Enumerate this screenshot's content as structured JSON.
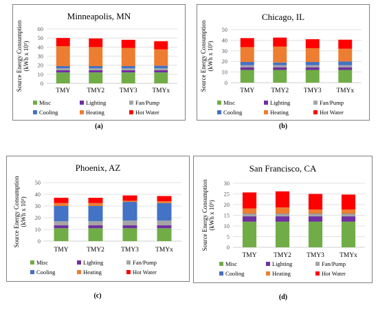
{
  "colors": {
    "misc": "#70ad47",
    "lighting": "#7030a0",
    "fanpump": "#a5a5a5",
    "cooling": "#4472c4",
    "heating": "#ed7d31",
    "hotwater": "#ff0000"
  },
  "legend": {
    "misc": "Misc",
    "lighting": "Lighting",
    "fanpump": "Fan/Pump",
    "cooling": "Cooling",
    "heating": "Heating",
    "hotwater": "Hot Water"
  },
  "chart_data": [
    {
      "type": "bar",
      "stacked": true,
      "caption": "(a)",
      "title": "Minneapolis, MN",
      "ylabel": "Source Energy Consumption\n(kWh x 10³)",
      "categories": [
        "TMY",
        "TMY2",
        "TMY3",
        "TMYx"
      ],
      "ylim": [
        0,
        60
      ],
      "yticks": [
        0,
        10,
        20,
        30,
        40,
        50,
        60
      ],
      "series": [
        {
          "key": "misc",
          "name": "Misc",
          "values": [
            12,
            12,
            12,
            12
          ]
        },
        {
          "key": "lighting",
          "name": "Lighting",
          "values": [
            2.5,
            2.5,
            2.5,
            2.5
          ]
        },
        {
          "key": "fanpump",
          "name": "Fan/Pump",
          "values": [
            2,
            2,
            2,
            2
          ]
        },
        {
          "key": "cooling",
          "name": "Cooling",
          "values": [
            2.5,
            2.5,
            2.5,
            3
          ]
        },
        {
          "key": "heating",
          "name": "Heating",
          "values": [
            22,
            21,
            20,
            18
          ]
        },
        {
          "key": "hotwater",
          "name": "Hot Water",
          "values": [
            9,
            9.5,
            9,
            9
          ]
        }
      ]
    },
    {
      "type": "bar",
      "stacked": true,
      "caption": "(b)",
      "title": "Chicago, IL",
      "ylabel": "Source Energy Consumption\n(kWh x 10³)",
      "categories": [
        "TMY",
        "TMY2",
        "TMY3",
        "TMYx"
      ],
      "ylim": [
        0,
        50
      ],
      "yticks": [
        0,
        10,
        20,
        30,
        40,
        50
      ],
      "series": [
        {
          "key": "misc",
          "name": "Misc",
          "values": [
            12,
            12,
            12,
            12
          ]
        },
        {
          "key": "lighting",
          "name": "Lighting",
          "values": [
            2.5,
            2.5,
            2.5,
            2.5
          ]
        },
        {
          "key": "fanpump",
          "name": "Fan/Pump",
          "values": [
            2,
            2,
            2,
            2
          ]
        },
        {
          "key": "cooling",
          "name": "Cooling",
          "values": [
            3,
            2.5,
            3,
            3.5
          ]
        },
        {
          "key": "heating",
          "name": "Heating",
          "values": [
            14,
            15,
            13,
            12
          ]
        },
        {
          "key": "hotwater",
          "name": "Hot Water",
          "values": [
            8.5,
            8.5,
            8.5,
            8.5
          ]
        }
      ]
    },
    {
      "type": "bar",
      "stacked": true,
      "caption": "(c)",
      "title": "Phoenix, AZ",
      "ylabel": "Source Energy Consumption\n(kWh x 10³)",
      "categories": [
        "TMY",
        "TMY2",
        "TMY3",
        "TMYx"
      ],
      "ylim": [
        0,
        50
      ],
      "yticks": [
        0,
        10,
        20,
        30,
        40,
        50
      ],
      "series": [
        {
          "key": "misc",
          "name": "Misc",
          "values": [
            11,
            11,
            11,
            11
          ]
        },
        {
          "key": "lighting",
          "name": "Lighting",
          "values": [
            2.5,
            2.5,
            2.5,
            2.5
          ]
        },
        {
          "key": "fanpump",
          "name": "Fan/Pump",
          "values": [
            3.5,
            3.5,
            4,
            4
          ]
        },
        {
          "key": "cooling",
          "name": "Cooling",
          "values": [
            13,
            13,
            16,
            15
          ]
        },
        {
          "key": "heating",
          "name": "Heating",
          "values": [
            2.5,
            2.5,
            1,
            1.5
          ]
        },
        {
          "key": "hotwater",
          "name": "Hot Water",
          "values": [
            4.5,
            4.5,
            4.5,
            4.5
          ]
        }
      ]
    },
    {
      "type": "bar",
      "stacked": true,
      "caption": "(d)",
      "title": "San Francisco, CA",
      "ylabel": "Source Energy Consumption\n(kWh x 10³)",
      "categories": [
        "TMY",
        "TMY2",
        "TMY3",
        "TMYx"
      ],
      "ylim": [
        0,
        30
      ],
      "yticks": [
        0,
        5,
        10,
        15,
        20,
        25,
        30
      ],
      "series": [
        {
          "key": "misc",
          "name": "Misc",
          "values": [
            12,
            12,
            12,
            12
          ]
        },
        {
          "key": "lighting",
          "name": "Lighting",
          "values": [
            2.5,
            2.5,
            2.5,
            2.5
          ]
        },
        {
          "key": "fanpump",
          "name": "Fan/Pump",
          "values": [
            1,
            1,
            1,
            1
          ]
        },
        {
          "key": "cooling",
          "name": "Cooling",
          "values": [
            0.2,
            0.2,
            0.2,
            0.2
          ]
        },
        {
          "key": "heating",
          "name": "Heating",
          "values": [
            2.5,
            3,
            2,
            2
          ]
        },
        {
          "key": "hotwater",
          "name": "Hot Water",
          "values": [
            7.5,
            7.5,
            7.3,
            7
          ]
        }
      ]
    }
  ]
}
